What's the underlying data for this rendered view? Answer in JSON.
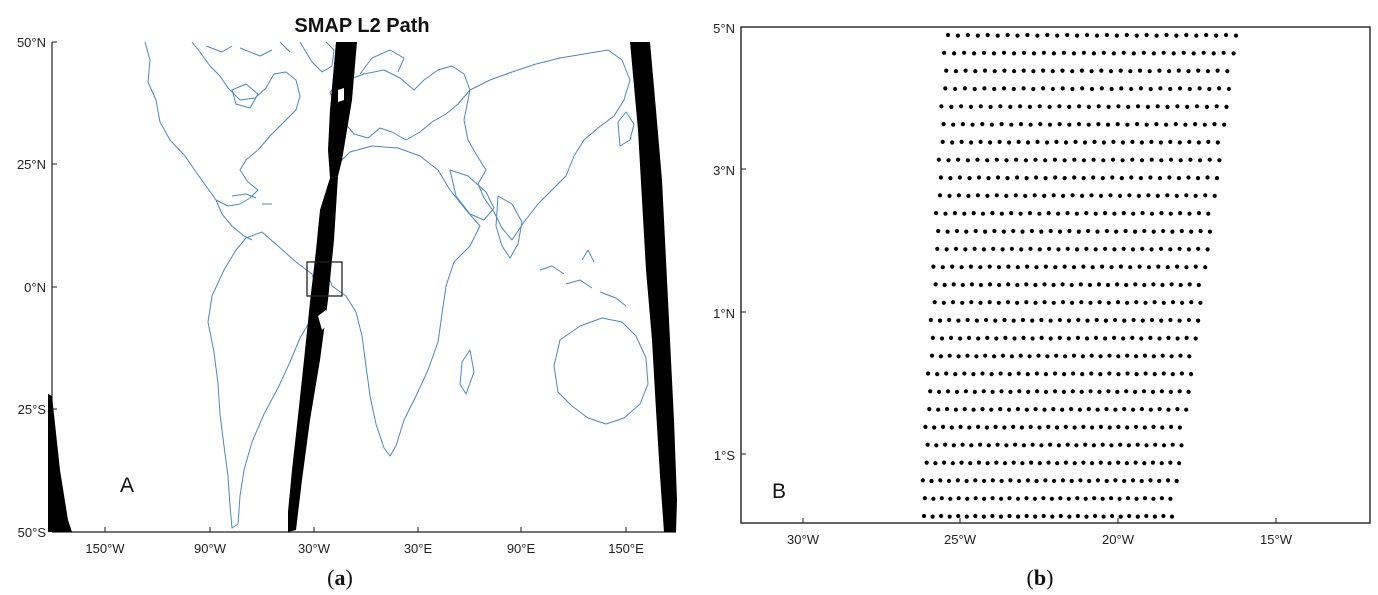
{
  "panel_a": {
    "title": "SMAP L2 Path",
    "letter": "A",
    "caption_open": "(",
    "caption_letter": "a",
    "caption_close": ")",
    "y_ticks": [
      "50°N",
      "25°N",
      "0°N",
      "25°S",
      "50°S"
    ],
    "x_ticks": [
      "150°W",
      "90°W",
      "30°W",
      "30°E",
      "90°E",
      "150°E"
    ],
    "coastline_color": "#4f86c6",
    "swath_color": "#000000"
  },
  "panel_b": {
    "letter": "B",
    "caption_open": "(",
    "caption_letter": "b",
    "caption_close": ")",
    "y_ticks": [
      "5°N",
      "3°N",
      "1°N",
      "1°S"
    ],
    "x_ticks": [
      "30°W",
      "25°W",
      "20°W",
      "15°W"
    ],
    "point_color": "#000000"
  }
}
